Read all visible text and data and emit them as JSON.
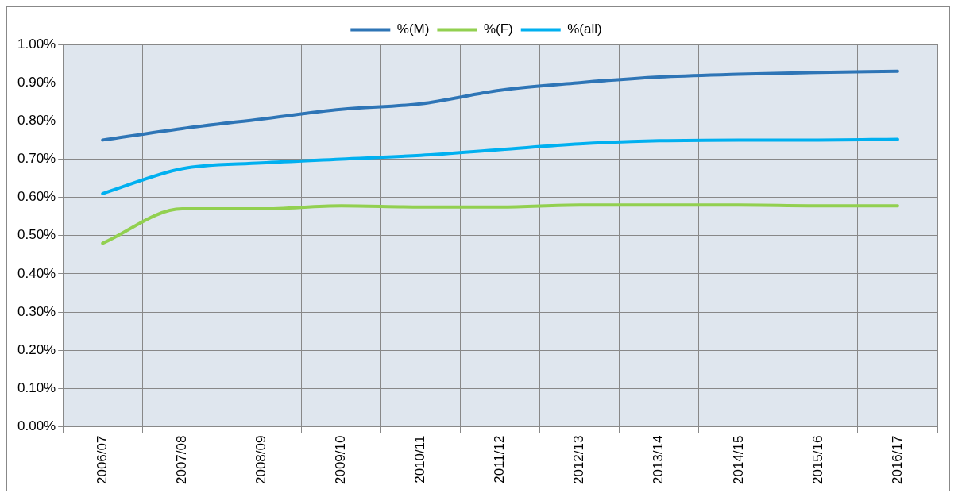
{
  "chart_data": {
    "type": "line",
    "categories": [
      "2006/07",
      "2007/08",
      "2008/09",
      "2009/10",
      "2010/11",
      "2011/12",
      "2012/13",
      "2013/14",
      "2014/15",
      "2015/16",
      "2016/17"
    ],
    "series": [
      {
        "name": "%(M)",
        "color": "#2e75b6",
        "values": [
          0.75,
          0.78,
          0.805,
          0.83,
          0.845,
          0.88,
          0.9,
          0.915,
          0.922,
          0.927,
          0.93
        ]
      },
      {
        "name": "%(F)",
        "color": "#92d050",
        "values": [
          0.48,
          0.57,
          0.57,
          0.578,
          0.575,
          0.575,
          0.58,
          0.58,
          0.58,
          0.578,
          0.578
        ]
      },
      {
        "name": "%(all)",
        "color": "#00b0f0",
        "values": [
          0.61,
          0.675,
          0.69,
          0.7,
          0.71,
          0.725,
          0.74,
          0.748,
          0.75,
          0.75,
          0.752
        ]
      }
    ],
    "ylim": [
      0,
      1
    ],
    "yticks": [
      {
        "value": 0,
        "label": "0.00%"
      },
      {
        "value": 0.1,
        "label": "0.10%"
      },
      {
        "value": 0.2,
        "label": "0.20%"
      },
      {
        "value": 0.3,
        "label": "0.30%"
      },
      {
        "value": 0.4,
        "label": "0.40%"
      },
      {
        "value": 0.5,
        "label": "0.50%"
      },
      {
        "value": 0.6,
        "label": "0.60%"
      },
      {
        "value": 0.7,
        "label": "0.70%"
      },
      {
        "value": 0.8,
        "label": "0.80%"
      },
      {
        "value": 0.9,
        "label": "0.90%"
      },
      {
        "value": 1,
        "label": "1.00%"
      }
    ],
    "grid": true,
    "legend": "top",
    "marker": "none",
    "line_style": "solid"
  }
}
